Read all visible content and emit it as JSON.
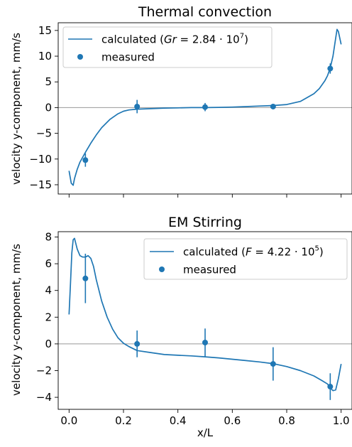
{
  "chart_data": [
    {
      "type": "line",
      "title": "Thermal convection",
      "xlabel": "",
      "ylabel": "velocity y-component, mm/s",
      "xlim": [
        -0.04,
        1.04
      ],
      "ylim": [
        -16.8,
        16.5
      ],
      "yticks": [
        -15,
        -10,
        -5,
        0,
        5,
        10,
        15
      ],
      "ytick_labels": [
        "−15",
        "−10",
        "−5",
        "0",
        "5",
        "10",
        "15"
      ],
      "xticks": [
        0.0,
        0.2,
        0.4,
        0.6,
        0.8,
        1.0
      ],
      "show_xtick_labels": false,
      "zero_line": true,
      "legend_position": "top-left",
      "legend": {
        "calculated_prefix": "calculated (",
        "calculated_var": "Gr",
        "calculated_eq": " = 2.84 · 10",
        "calculated_sup": "7",
        "calculated_suffix": ")",
        "measured": "measured"
      },
      "color": "#1f77b4",
      "series": [
        {
          "name": "calculated",
          "kind": "line",
          "x": [
            0.0,
            0.008,
            0.015,
            0.02,
            0.03,
            0.04,
            0.06,
            0.08,
            0.1,
            0.12,
            0.15,
            0.18,
            0.2,
            0.22,
            0.25,
            0.3,
            0.35,
            0.4,
            0.45,
            0.5,
            0.55,
            0.6,
            0.65,
            0.7,
            0.75,
            0.8,
            0.85,
            0.9,
            0.92,
            0.94,
            0.95,
            0.96,
            0.97,
            0.98,
            0.985,
            0.99,
            1.0
          ],
          "y": [
            -12.3,
            -14.7,
            -15.1,
            -13.8,
            -12.0,
            -10.6,
            -8.7,
            -6.9,
            -5.3,
            -3.9,
            -2.3,
            -1.2,
            -0.7,
            -0.45,
            -0.3,
            -0.2,
            -0.1,
            -0.05,
            0.0,
            0.0,
            0.05,
            0.1,
            0.2,
            0.3,
            0.4,
            0.6,
            1.2,
            2.7,
            3.7,
            5.2,
            6.2,
            7.7,
            10.0,
            13.5,
            15.2,
            14.8,
            12.3
          ]
        },
        {
          "name": "measured",
          "kind": "scatter",
          "x": [
            0.06,
            0.25,
            0.5,
            0.75,
            0.96
          ],
          "y": [
            -10.2,
            0.2,
            0.1,
            0.2,
            7.6
          ],
          "yerr": [
            1.3,
            1.3,
            0.8,
            0.4,
            1.0
          ]
        }
      ]
    },
    {
      "type": "line",
      "title": "EM Stirring",
      "xlabel": "x/L",
      "ylabel": "velocity y-component, mm/s",
      "xlim": [
        -0.04,
        1.04
      ],
      "ylim": [
        -4.9,
        8.4
      ],
      "yticks": [
        -4,
        -2,
        0,
        2,
        4,
        6,
        8
      ],
      "ytick_labels": [
        "−4",
        "−2",
        "0",
        "2",
        "4",
        "6",
        "8"
      ],
      "xticks": [
        0.0,
        0.2,
        0.4,
        0.6,
        0.8,
        1.0
      ],
      "xtick_labels": [
        "0.0",
        "0.2",
        "0.4",
        "0.6",
        "0.8",
        "1.0"
      ],
      "show_xtick_labels": true,
      "zero_line": true,
      "legend_position": "top-right",
      "legend": {
        "calculated_prefix": "calculated (",
        "calculated_var": "F",
        "calculated_eq": " = 4.22 · 10",
        "calculated_sup": "5",
        "calculated_suffix": ")",
        "measured": "measured"
      },
      "color": "#1f77b4",
      "series": [
        {
          "name": "calculated",
          "kind": "line",
          "x": [
            0.0,
            0.005,
            0.01,
            0.015,
            0.02,
            0.03,
            0.04,
            0.05,
            0.06,
            0.07,
            0.08,
            0.09,
            0.1,
            0.12,
            0.14,
            0.16,
            0.18,
            0.2,
            0.22,
            0.25,
            0.3,
            0.35,
            0.4,
            0.45,
            0.5,
            0.55,
            0.6,
            0.65,
            0.7,
            0.75,
            0.8,
            0.85,
            0.9,
            0.93,
            0.95,
            0.96,
            0.97,
            0.98,
            0.99,
            1.0
          ],
          "y": [
            2.2,
            4.5,
            6.8,
            7.8,
            7.9,
            7.1,
            6.6,
            6.5,
            6.5,
            6.6,
            6.4,
            5.8,
            4.8,
            3.2,
            2.0,
            1.1,
            0.45,
            0.05,
            -0.2,
            -0.5,
            -0.65,
            -0.8,
            -0.85,
            -0.9,
            -0.97,
            -1.05,
            -1.15,
            -1.25,
            -1.35,
            -1.48,
            -1.7,
            -2.0,
            -2.4,
            -2.75,
            -3.0,
            -3.3,
            -3.5,
            -3.45,
            -2.6,
            -1.5
          ]
        },
        {
          "name": "measured",
          "kind": "scatter",
          "x": [
            0.06,
            0.25,
            0.5,
            0.75,
            0.96
          ],
          "y": [
            4.9,
            0.0,
            0.1,
            -1.5,
            -3.2
          ],
          "yerr": [
            1.85,
            1.0,
            1.05,
            1.25,
            1.0
          ]
        }
      ]
    }
  ]
}
